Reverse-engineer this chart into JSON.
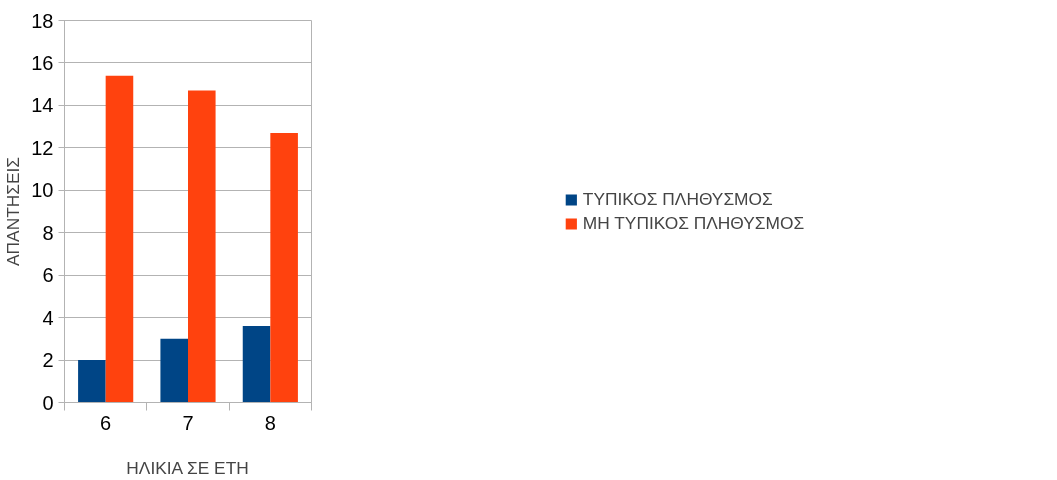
{
  "chart_data": {
    "type": "bar",
    "xlabel": "ΗΛΙΚΙΑ ΣΕ ΕΤΗ",
    "ylabel": "ΑΠΑΝΤΗΣΕΙΣ",
    "categories": [
      "6",
      "7",
      "8"
    ],
    "series": [
      {
        "name": "ΤΥΠΙΚΟΣ ΠΛΗΘΥΣΜΟΣ",
        "color": "#004586",
        "values": [
          2.0,
          3.0,
          3.6
        ]
      },
      {
        "name": "ΜΗ ΤΥΠΙΚΟΣ ΠΛΗΘΥΣΜΟΣ",
        "color": "#ff420e",
        "values": [
          15.4,
          14.7,
          12.7
        ]
      }
    ],
    "ylim": [
      0,
      18
    ],
    "yticks": [
      0,
      2,
      4,
      6,
      8,
      10,
      12,
      14,
      16,
      18
    ],
    "grid": "y",
    "legend": "right"
  }
}
